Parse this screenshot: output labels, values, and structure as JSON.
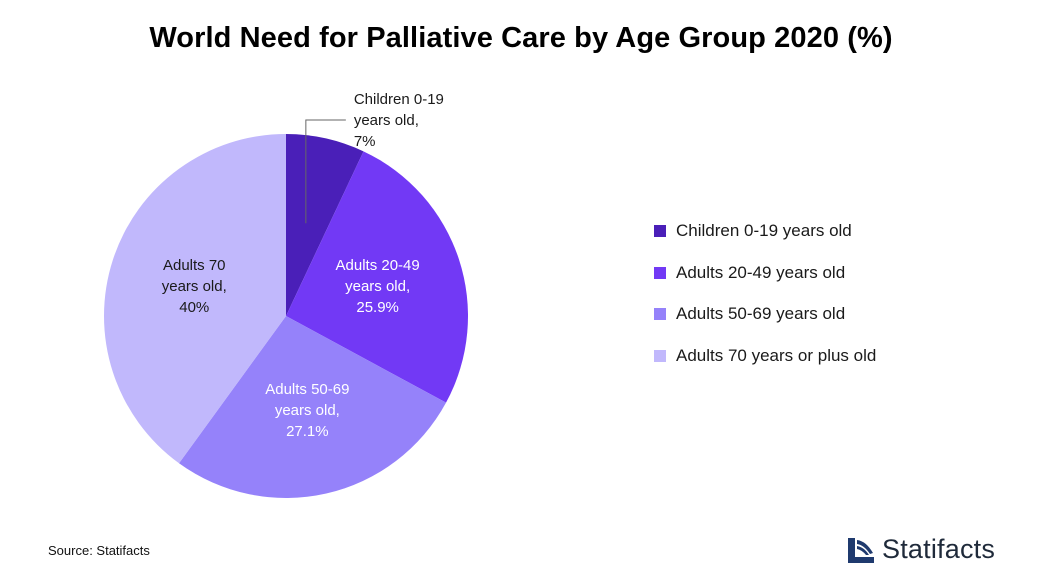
{
  "chart_data": {
    "type": "pie",
    "title": "World Need for Palliative Care by Age Group 2020 (%)",
    "slices": [
      {
        "legend": "Children 0-19 years old",
        "label_lines": [
          "Children 0-19",
          "years old,",
          "7%"
        ],
        "value": 7,
        "color": "#4a1fb8"
      },
      {
        "legend": "Adults 20-49 years old",
        "label_lines": [
          "Adults 20-49",
          "years old,",
          "25.9%"
        ],
        "value": 25.9,
        "color": "#7239f5"
      },
      {
        "legend": "Adults 50-69 years old",
        "label_lines": [
          "Adults 50-69",
          "years old,",
          "27.1%"
        ],
        "value": 27.1,
        "color": "#9582fa"
      },
      {
        "legend": "Adults 70 years or plus old",
        "label_lines": [
          "Adults 70",
          "years old,",
          "40%"
        ],
        "value": 40,
        "color": "#c1b8fc"
      }
    ],
    "legend_position": "right"
  },
  "footer": {
    "source": "Source: Statifacts",
    "brand": "Statifacts"
  }
}
